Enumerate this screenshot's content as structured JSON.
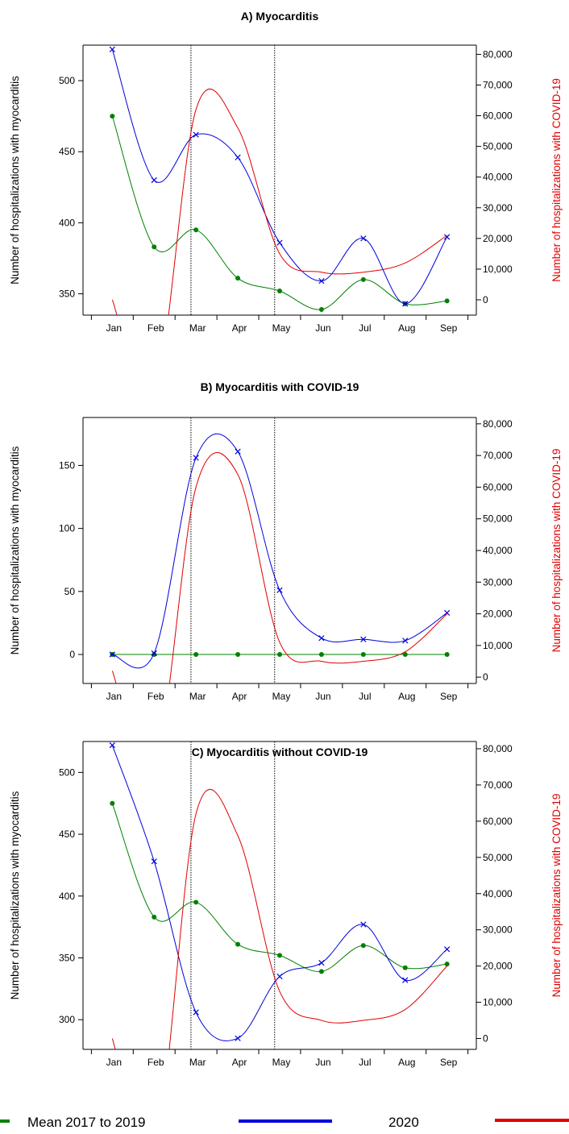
{
  "chart_data": [
    {
      "type": "line",
      "title": "A) Myocarditis",
      "ylabel": "Number of hospitalizations with myocarditis",
      "y2label": "Number of hospitalizations with COVID-19",
      "categories": [
        "Jan",
        "Feb",
        "Mar",
        "Apr",
        "May",
        "Jun",
        "Jul",
        "Aug",
        "Sep"
      ],
      "ylim": [
        335,
        525
      ],
      "yticks": [
        350,
        400,
        450,
        500
      ],
      "y2lim": [
        -5000,
        83000
      ],
      "y2ticks": [
        0,
        10000,
        20000,
        30000,
        40000,
        50000,
        60000,
        70000,
        80000
      ],
      "y2ticklabels": [
        "0",
        "10,000",
        "20,000",
        "30,000",
        "40,000",
        "50,000",
        "60,000",
        "70,000",
        "80,000"
      ],
      "vlines": [
        "Mar",
        "May"
      ],
      "series": [
        {
          "name": "Mean 2017 to 2019",
          "color": "#008000",
          "marker": "dot",
          "axis": "left",
          "values": [
            475,
            383,
            395,
            361,
            352,
            339,
            360,
            343,
            345
          ]
        },
        {
          "name": "2020",
          "color": "#0000dd",
          "marker": "x",
          "axis": "left",
          "values": [
            522,
            430,
            462,
            446,
            386,
            359,
            389,
            343,
            390
          ]
        },
        {
          "color": "#e00000",
          "axis": "right",
          "curve": true,
          "values": [
            0,
            -32000,
            62000,
            56000,
            15000,
            9000,
            9000,
            12000,
            21000
          ]
        }
      ]
    },
    {
      "type": "line",
      "title": "B) Myocarditis with COVID-19",
      "ylabel": "Number of hospitalizations with myocarditis",
      "y2label": "Number of hospitalizations with COVID-19",
      "categories": [
        "Jan",
        "Feb",
        "Mar",
        "Apr",
        "May",
        "Jun",
        "Jul",
        "Aug",
        "Sep"
      ],
      "ylim": [
        -23,
        188
      ],
      "yticks": [
        0,
        50,
        100,
        150
      ],
      "y2lim": [
        -2000,
        82000
      ],
      "y2ticks": [
        0,
        10000,
        20000,
        30000,
        40000,
        50000,
        60000,
        70000,
        80000
      ],
      "y2ticklabels": [
        "0",
        "10,000",
        "20,000",
        "30,000",
        "40,000",
        "50,000",
        "60,000",
        "70,000",
        "80,000"
      ],
      "vlines": [
        "Mar",
        "May"
      ],
      "series": [
        {
          "name": "Mean 2017 to 2019",
          "color": "#008000",
          "marker": "dot",
          "axis": "left",
          "values": [
            0,
            0,
            0,
            0,
            0,
            0,
            0,
            0,
            0
          ]
        },
        {
          "name": "2020",
          "color": "#0000dd",
          "marker": "x",
          "axis": "left",
          "values": [
            0,
            1,
            156,
            161,
            51,
            13,
            12,
            11,
            33
          ]
        },
        {
          "color": "#e00000",
          "axis": "right",
          "curve": true,
          "values": [
            2000,
            -30000,
            60000,
            64000,
            11000,
            5000,
            5000,
            8000,
            20000
          ]
        }
      ]
    },
    {
      "type": "line",
      "title": "C) Myocarditis without COVID-19",
      "ylabel": "Number of hospitalizations with myocarditis",
      "y2label": "Number of hospitalizations with COVID-19",
      "categories": [
        "Jan",
        "Feb",
        "Mar",
        "Apr",
        "May",
        "Jun",
        "Jul",
        "Aug",
        "Sep"
      ],
      "ylim": [
        276,
        525
      ],
      "yticks": [
        300,
        350,
        400,
        450,
        500
      ],
      "y2lim": [
        -3000,
        82000
      ],
      "y2ticks": [
        0,
        10000,
        20000,
        30000,
        40000,
        50000,
        60000,
        70000,
        80000
      ],
      "y2ticklabels": [
        "0",
        "10,000",
        "20,000",
        "30,000",
        "40,000",
        "50,000",
        "60,000",
        "70,000",
        "80,000"
      ],
      "vlines": [
        "Mar",
        "May"
      ],
      "series": [
        {
          "name": "Mean 2017 to 2019",
          "color": "#008000",
          "marker": "dot",
          "axis": "left",
          "values": [
            475,
            383,
            395,
            361,
            352,
            339,
            360,
            342,
            345
          ]
        },
        {
          "name": "2020",
          "color": "#0000dd",
          "marker": "x",
          "axis": "left",
          "values": [
            522,
            428,
            306,
            285,
            335,
            346,
            377,
            332,
            357
          ]
        },
        {
          "color": "#e00000",
          "axis": "right",
          "curve": true,
          "values": [
            0,
            -32000,
            62000,
            56000,
            13000,
            5000,
            5000,
            8000,
            20000
          ]
        }
      ]
    }
  ],
  "legend": {
    "items": [
      {
        "label": "Mean 2017 to 2019",
        "color": "#008000"
      },
      {
        "label": "2020",
        "color": "#0000dd"
      },
      {
        "color": "#e00000"
      }
    ]
  }
}
